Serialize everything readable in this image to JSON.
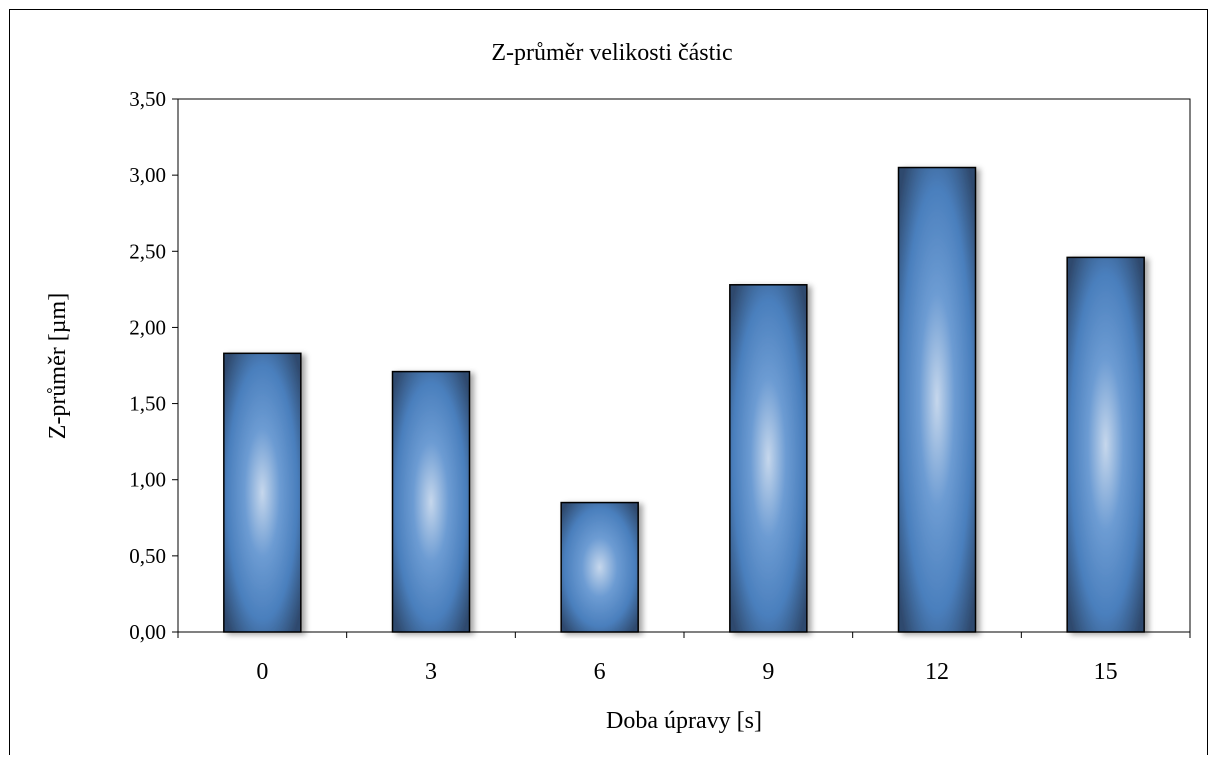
{
  "chart_data": {
    "type": "bar",
    "title": "Z-průměr velikosti částic",
    "xlabel": "Doba úpravy [s]",
    "ylabel": "Z-průměr [µm]",
    "categories": [
      "0",
      "3",
      "6",
      "9",
      "12",
      "15"
    ],
    "values": [
      1.83,
      1.71,
      0.85,
      2.28,
      3.05,
      2.46
    ],
    "ylim": [
      0,
      3.5
    ],
    "yticks": [
      "0,00",
      "0,50",
      "1,00",
      "1,50",
      "2,00",
      "2,50",
      "3,00",
      "3,50"
    ],
    "ytick_values": [
      0,
      0.5,
      1,
      1.5,
      2,
      2.5,
      3,
      3.5
    ],
    "grid": false,
    "legend": "none",
    "colors": {
      "bar_edge": "#2f4a6e",
      "bar_center": "#c6d7ec",
      "bar_mid": "#4f86c4",
      "bar_outer": "#3a5c8a",
      "axis": "#000000"
    }
  }
}
